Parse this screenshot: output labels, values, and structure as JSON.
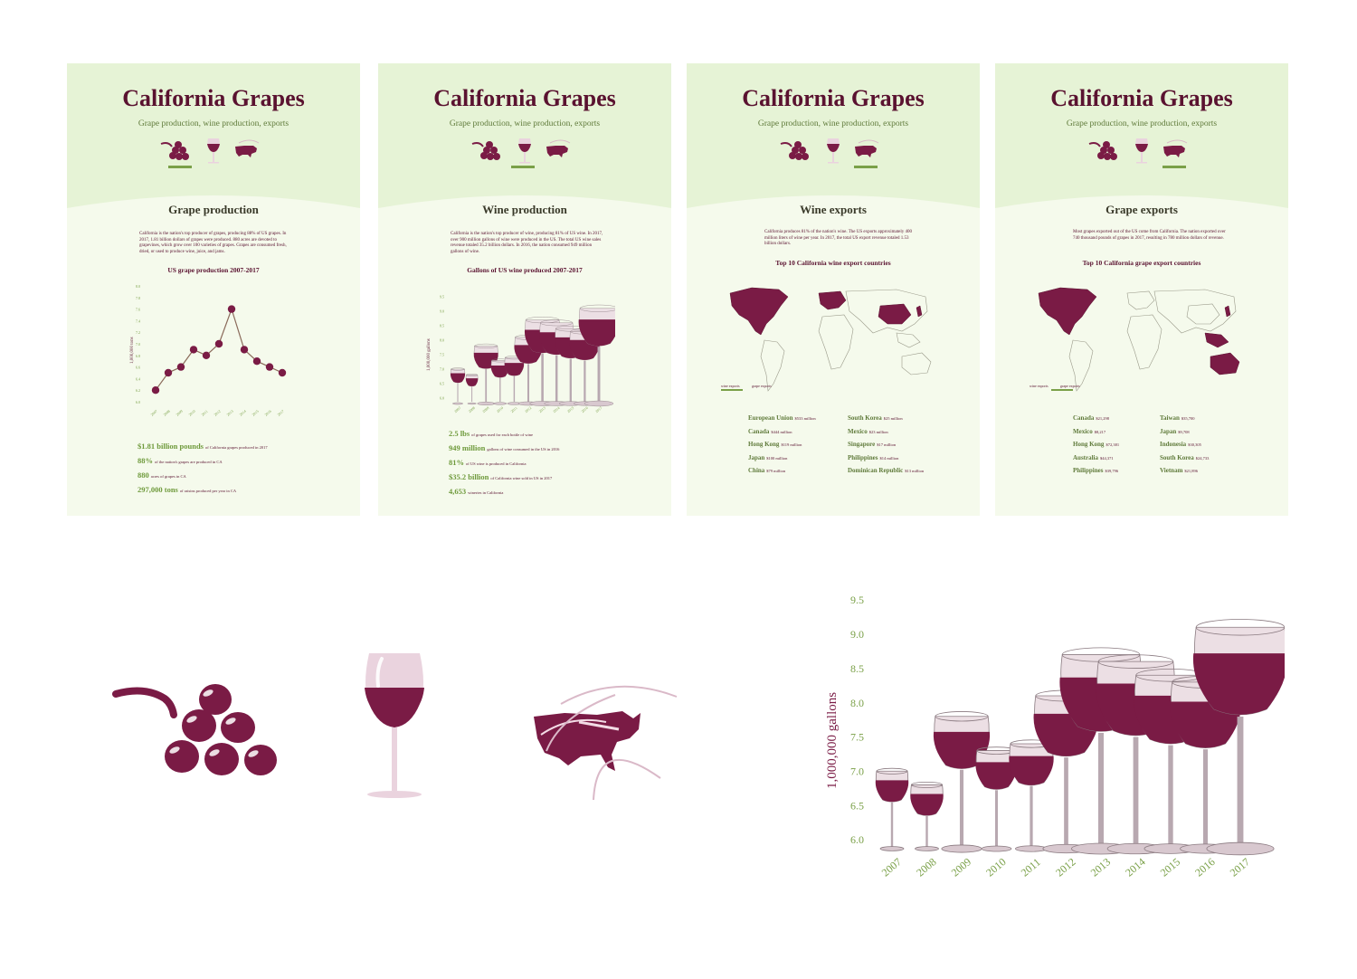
{
  "poster_title": "California Grapes",
  "poster_subtitle": "Grape production, wine production, exports",
  "colors": {
    "wine": "#7a1b45",
    "header_green": "#e6f3d6",
    "panel_bg": "#f5faec",
    "accent_green": "#7aa048"
  },
  "icons": [
    "grapes-icon",
    "wine-glass-icon",
    "usa-map-leaf-icon"
  ],
  "panels": [
    {
      "section_title": "Grape production",
      "body": "California is the nation's top producer of grapes, producing 88% of US grapes. In 2017, 1.81 billion dollars of grapes were produced. 880 acres are devoted to grapevines, which grow over 100 varieties of grapes. Grapes are consumed fresh, dried, or used to produce wine, juice, and jams.",
      "chart_title": "US grape production 2007-2017",
      "ylabel": "1,000,000 tons",
      "stats": [
        {
          "big": "$1.81 billion pounds",
          "small": "of California grapes produced in 2017"
        },
        {
          "big": "88%",
          "small": "of the nation's grapes are produced in CA"
        },
        {
          "big": "880",
          "small": "acres of grapes in CA"
        },
        {
          "big": "297,000 tons",
          "small": "of raisins produced per year in CA"
        }
      ]
    },
    {
      "section_title": "Wine production",
      "body": "California is the nation's top producer of wine, producing 81% of US wine. In 2017, over 900 million gallons of wine were produced in the US. The total US wine sales revenue totaled 35.2 billion dollars. In 2016, the nation consumed 949 million gallons of wine.",
      "chart_title": "Gallons of US wine produced 2007-2017",
      "ylabel": "1,000,000 gallons",
      "stats": [
        {
          "big": "2.5 lbs",
          "small": "of grapes used for each bottle of wine"
        },
        {
          "big": "949 million",
          "small": "gallons of wine consumed in the US in 2016"
        },
        {
          "big": "81%",
          "small": "of US wine is produced in California"
        },
        {
          "big": "$35.2 billion",
          "small": "of California wine sold in US in 2017"
        },
        {
          "big": "4,653",
          "small": "wineries in California"
        }
      ]
    },
    {
      "section_title": "Wine exports",
      "body": "California produces 81% of the nation's wine. The US exports approximately 400 million liters of wine per year. In 2017, the total US export revenue totaled 1.53 billion dollars.",
      "chart_title": "Top 10 California wine export countries",
      "legend": [
        "wine exports",
        "grape exports"
      ],
      "countries_left": [
        {
          "name": "European Union",
          "value": "$533 million"
        },
        {
          "name": "Canada",
          "value": "$444 million"
        },
        {
          "name": "Hong Kong",
          "value": "$119 million"
        },
        {
          "name": "Japan",
          "value": "$100 million"
        },
        {
          "name": "China",
          "value": "$79 million"
        }
      ],
      "countries_right": [
        {
          "name": "South Korea",
          "value": "$25 million"
        },
        {
          "name": "Mexico",
          "value": "$23 million"
        },
        {
          "name": "Singapore",
          "value": "$17 million"
        },
        {
          "name": "Philippines",
          "value": "$14 million"
        },
        {
          "name": "Dominican Republic",
          "value": "$13 million"
        }
      ]
    },
    {
      "section_title": "Grape exports",
      "body": "Most grapes exported out of the US come from California. The nation exported over 740 thousand pounds of grapes in 2017, resulting in 780 million dollars of revenue.",
      "chart_title": "Top 10 California grape export countries",
      "legend": [
        "wine exports",
        "grape exports"
      ],
      "countries_left": [
        {
          "name": "Canada",
          "value": "$21,298"
        },
        {
          "name": "Mexico",
          "value": "$8,217"
        },
        {
          "name": "Hong Kong",
          "value": "$72,381"
        },
        {
          "name": "Australia",
          "value": "$44,371"
        },
        {
          "name": "Philippines",
          "value": "$39,796"
        }
      ],
      "countries_right": [
        {
          "name": "Taiwan",
          "value": "$35,700"
        },
        {
          "name": "Japan",
          "value": "$9,708"
        },
        {
          "name": "Indonesia",
          "value": "$30,305"
        },
        {
          "name": "South Korea",
          "value": "$24,733"
        },
        {
          "name": "Vietnam",
          "value": "$21,896"
        }
      ]
    }
  ],
  "chart_data": [
    {
      "type": "line",
      "x": [
        "2007",
        "2008",
        "2009",
        "2010",
        "2011",
        "2012",
        "2013",
        "2014",
        "2015",
        "2016",
        "2017"
      ],
      "values": [
        6.2,
        6.5,
        6.6,
        6.9,
        6.8,
        7.0,
        7.6,
        6.9,
        6.7,
        6.6,
        6.5
      ],
      "y_ticks": [
        "6.0",
        "6.2",
        "6.4",
        "6.6",
        "6.8",
        "7.0",
        "7.2",
        "7.4",
        "7.6",
        "7.8",
        "8.0"
      ],
      "ylim": [
        6.0,
        8.0
      ]
    },
    {
      "type": "bar",
      "categories": [
        "2007",
        "2008",
        "2009",
        "2010",
        "2011",
        "2012",
        "2013",
        "2014",
        "2015",
        "2016",
        "2017"
      ],
      "values": [
        7.0,
        6.8,
        7.8,
        7.3,
        7.4,
        8.1,
        8.7,
        8.6,
        8.4,
        8.3,
        9.1
      ],
      "y_ticks": [
        "6.0",
        "6.5",
        "7.0",
        "7.5",
        "8.0",
        "8.5",
        "9.0",
        "9.5"
      ],
      "ylabel": "1,000,000 gallons",
      "ylim": [
        6.0,
        9.5
      ]
    }
  ]
}
